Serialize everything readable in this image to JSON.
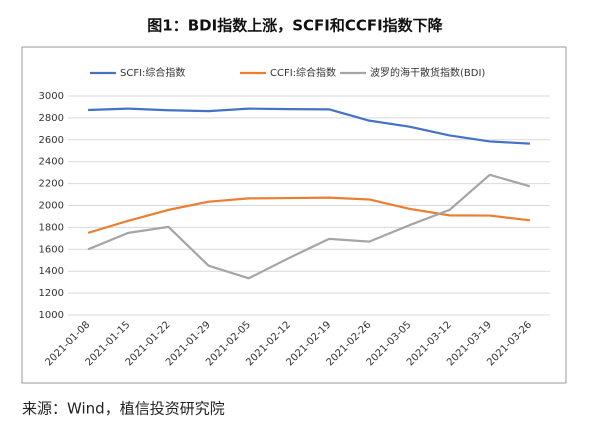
{
  "title": "图1：BDI指数上涨，SCFI和CCFI指数下降",
  "source": "来源：Wind，植信投资研究院",
  "chart_data": {
    "type": "line",
    "categories": [
      "2021-01-08",
      "2021-01-15",
      "2021-01-22",
      "2021-01-29",
      "2021-02-05",
      "2021-02-12",
      "2021-02-19",
      "2021-02-26",
      "2021-03-05",
      "2021-03-12",
      "2021-03-19",
      "2021-03-26"
    ],
    "series": [
      {
        "name": "SCFI:综合指数",
        "color": "#4472c4",
        "values": [
          2872,
          2885,
          2870,
          2862,
          2885,
          2880,
          2878,
          2775,
          2720,
          2640,
          2585,
          2565
        ]
      },
      {
        "name": "CCFI:综合指数",
        "color": "#ed7d31",
        "values": [
          1750,
          1860,
          1960,
          2035,
          2065,
          2068,
          2072,
          2055,
          1970,
          1910,
          1908,
          1865
        ]
      },
      {
        "name": "波罗的海干散货指数(BDI)",
        "color": "#a5a5a5",
        "values": [
          1600,
          1750,
          1805,
          1450,
          1335,
          1520,
          1695,
          1670,
          1820,
          1960,
          2280,
          2175
        ]
      }
    ],
    "ylim": [
      1000,
      3000
    ],
    "yticks": [
      1000,
      1200,
      1400,
      1600,
      1800,
      2000,
      2200,
      2400,
      2600,
      2800,
      3000
    ],
    "grid": true,
    "legend": "top"
  }
}
